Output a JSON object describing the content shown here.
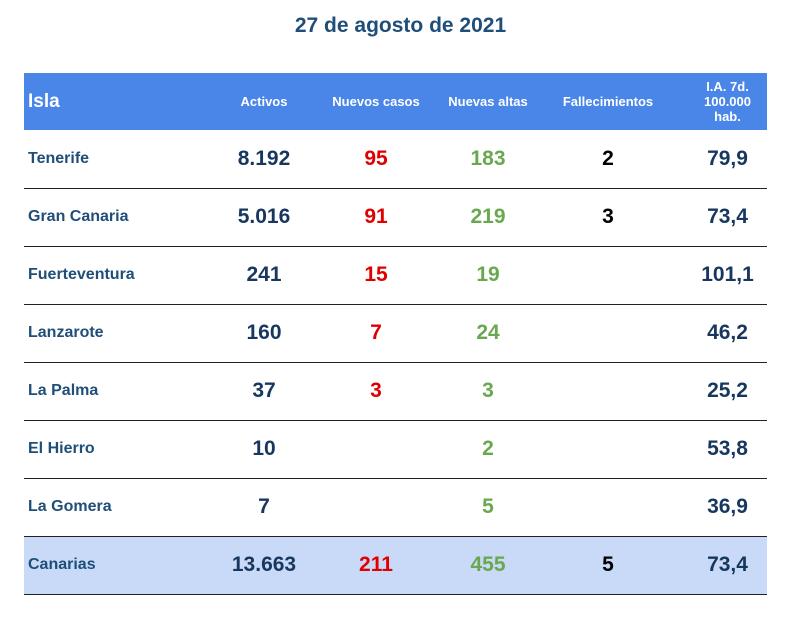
{
  "title": "27 de agosto de 2021",
  "headers": {
    "isla": "Isla",
    "activos": "Activos",
    "nuevos_casos": "Nuevos casos",
    "nuevas_altas": "Nuevas altas",
    "fallecimientos": "Fallecimientos",
    "ia_line1": "I.A. 7d.",
    "ia_line2": "100.000",
    "ia_line3": "hab."
  },
  "rows": [
    {
      "isla": "Tenerife",
      "activos": "8.192",
      "nuevos_casos": "95",
      "nuevas_altas": "183",
      "fallecimientos": "2",
      "ia": "79,9"
    },
    {
      "isla": "Gran Canaria",
      "activos": "5.016",
      "nuevos_casos": "91",
      "nuevas_altas": "219",
      "fallecimientos": "3",
      "ia": "73,4"
    },
    {
      "isla": "Fuerteventura",
      "activos": "241",
      "nuevos_casos": "15",
      "nuevas_altas": "19",
      "fallecimientos": "",
      "ia": "101,1"
    },
    {
      "isla": "Lanzarote",
      "activos": "160",
      "nuevos_casos": "7",
      "nuevas_altas": "24",
      "fallecimientos": "",
      "ia": "46,2"
    },
    {
      "isla": "La Palma",
      "activos": "37",
      "nuevos_casos": "3",
      "nuevas_altas": "3",
      "fallecimientos": "",
      "ia": "25,2"
    },
    {
      "isla": "El Hierro",
      "activos": "10",
      "nuevos_casos": "",
      "nuevas_altas": "2",
      "fallecimientos": "",
      "ia": "53,8"
    },
    {
      "isla": "La Gomera",
      "activos": "7",
      "nuevos_casos": "",
      "nuevas_altas": "5",
      "fallecimientos": "",
      "ia": "36,9"
    },
    {
      "isla": "Canarias",
      "activos": "13.663",
      "nuevos_casos": "211",
      "nuevas_altas": "455",
      "fallecimientos": "5",
      "ia": "73,4"
    }
  ],
  "colors": {
    "header_bg": "#4a86e8",
    "total_row_bg": "#c9daf8",
    "title": "#1f4e79",
    "nuevos_casos": "#e00000",
    "nuevas_altas": "#6aa84f"
  }
}
